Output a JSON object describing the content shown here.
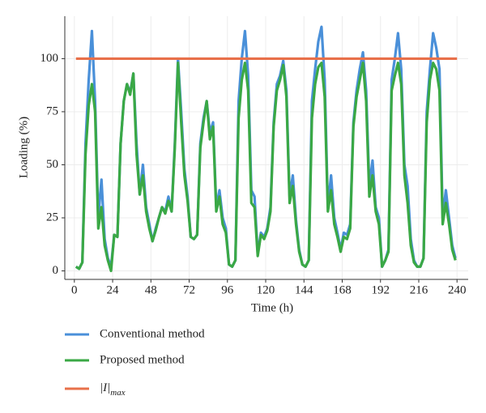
{
  "chart_data": {
    "type": "line",
    "xlabel": "Time (h)",
    "ylabel": "Loading (%)",
    "xlim": [
      -6,
      247
    ],
    "ylim": [
      -4,
      120
    ],
    "xticks": [
      0,
      24,
      48,
      72,
      96,
      120,
      144,
      168,
      192,
      216,
      240
    ],
    "yticks": [
      0,
      25,
      50,
      75,
      100
    ],
    "grid": true,
    "legend": "bottom",
    "x": [
      1,
      3,
      5,
      7,
      9,
      11,
      13,
      15,
      17,
      19,
      21,
      23,
      25,
      27,
      29,
      31,
      33,
      35,
      37,
      39,
      41,
      43,
      45,
      47,
      49,
      51,
      53,
      55,
      57,
      59,
      61,
      63,
      65,
      67,
      69,
      71,
      73,
      75,
      77,
      79,
      81,
      83,
      85,
      87,
      89,
      91,
      93,
      95,
      97,
      99,
      101,
      103,
      105,
      107,
      109,
      111,
      113,
      115,
      117,
      119,
      121,
      123,
      125,
      127,
      129,
      131,
      133,
      135,
      137,
      139,
      141,
      143,
      145,
      147,
      149,
      151,
      153,
      155,
      157,
      159,
      161,
      163,
      165,
      167,
      169,
      171,
      173,
      175,
      177,
      179,
      181,
      183,
      185,
      187,
      189,
      191,
      193,
      195,
      197,
      199,
      201,
      203,
      205,
      207,
      209,
      211,
      213,
      215,
      217,
      219,
      221,
      223,
      225,
      227,
      229,
      231,
      233,
      235,
      237,
      239
    ],
    "series": [
      {
        "name": "Conventional method",
        "color": "#4a90d9",
        "values": [
          2,
          1,
          4,
          60,
          90,
          113,
          80,
          25,
          43,
          15,
          6,
          2,
          17,
          16,
          60,
          80,
          88,
          84,
          93,
          60,
          36,
          50,
          30,
          22,
          14,
          20,
          25,
          30,
          28,
          35,
          28,
          60,
          100,
          75,
          48,
          35,
          16,
          15,
          17,
          60,
          72,
          80,
          65,
          70,
          30,
          38,
          25,
          20,
          3,
          2,
          5,
          80,
          100,
          113,
          92,
          38,
          35,
          8,
          18,
          16,
          20,
          30,
          70,
          88,
          92,
          99,
          85,
          35,
          45,
          24,
          10,
          3,
          2,
          5,
          80,
          95,
          108,
          115,
          90,
          30,
          45,
          25,
          18,
          10,
          18,
          17,
          22,
          70,
          85,
          95,
          103,
          85,
          40,
          52,
          30,
          25,
          2,
          5,
          10,
          90,
          100,
          112,
          95,
          50,
          40,
          15,
          5,
          2,
          2,
          6,
          75,
          95,
          112,
          105,
          95,
          25,
          38,
          25,
          12,
          6
        ]
      },
      {
        "name": "Proposed method",
        "color": "#3aa845",
        "values": [
          2,
          1,
          4,
          55,
          78,
          88,
          75,
          20,
          30,
          12,
          5,
          0,
          17,
          16,
          60,
          80,
          88,
          83,
          93,
          55,
          36,
          45,
          28,
          20,
          14,
          19,
          25,
          30,
          27,
          33,
          28,
          58,
          98,
          70,
          45,
          33,
          16,
          15,
          17,
          58,
          70,
          80,
          62,
          68,
          28,
          35,
          22,
          18,
          3,
          2,
          5,
          72,
          90,
          98,
          85,
          32,
          30,
          7,
          17,
          15,
          19,
          28,
          68,
          85,
          90,
          97,
          82,
          32,
          40,
          22,
          9,
          3,
          2,
          5,
          72,
          88,
          96,
          98,
          82,
          28,
          38,
          22,
          16,
          9,
          16,
          15,
          20,
          68,
          82,
          90,
          98,
          80,
          35,
          45,
          28,
          22,
          2,
          5,
          9,
          85,
          92,
          98,
          88,
          45,
          32,
          12,
          4,
          2,
          2,
          6,
          70,
          90,
          98,
          95,
          85,
          22,
          32,
          22,
          10,
          5
        ]
      },
      {
        "name": "|I|max",
        "color": "#e8704a",
        "x": [
          1,
          240
        ],
        "values": [
          100,
          100
        ]
      }
    ]
  }
}
